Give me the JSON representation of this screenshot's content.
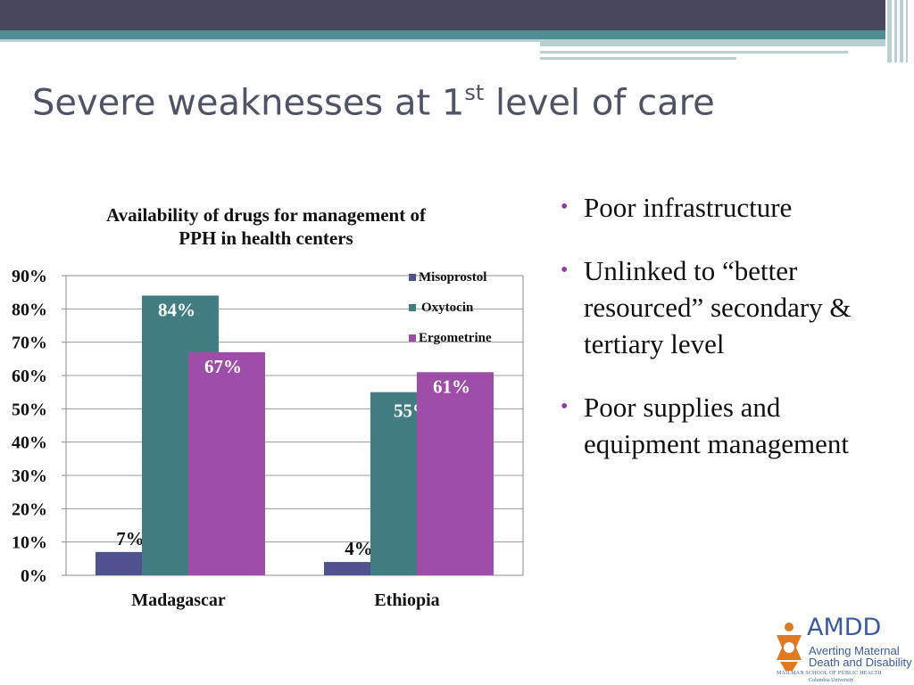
{
  "slide": {
    "title_main": "Severe weaknesses at 1",
    "title_sup": "st",
    "title_end": " level of care",
    "bullets": [
      "Poor infrastructure",
      "Unlinked to “better resourced” secondary & tertiary level",
      "Poor supplies and equipment management"
    ]
  },
  "colors": {
    "header_dark": "#474a5c",
    "header_teal": "#4e8e92",
    "header_light": "#b9cfd1",
    "title": "#4e5466",
    "bullet": "#8a3f97"
  },
  "logo": {
    "text": "AMDD",
    "line1": "Averting Maternal",
    "line2": "Death and Disability",
    "school": "MAILMAN SCHOOL OF PUBLIC HEALTH",
    "university": "Columbia University"
  },
  "chart_data": {
    "type": "bar",
    "title": "Availability of drugs for management of PPH in health centers",
    "title_lines": [
      "Availability of drugs for management of",
      "PPH in health centers"
    ],
    "categories": [
      "Madagascar",
      "Ethiopia"
    ],
    "series": [
      {
        "name": "Misoprostol",
        "values": [
          7,
          4
        ],
        "labels": [
          "7%",
          "4%"
        ],
        "color": "#50528f"
      },
      {
        "name": "Oxytocin",
        "values": [
          84,
          55
        ],
        "labels": [
          "84%",
          "55%"
        ],
        "color": "#417d83"
      },
      {
        "name": "Ergometrine",
        "values": [
          67,
          61
        ],
        "labels": [
          "67%",
          "61%"
        ],
        "color": "#9e4ea8"
      }
    ],
    "yticks": [
      "0%",
      "10%",
      "20%",
      "30%",
      "40%",
      "50%",
      "60%",
      "70%",
      "80%",
      "90%"
    ],
    "ylim": [
      0,
      90
    ],
    "grid": true,
    "legend_position": "top-right"
  }
}
